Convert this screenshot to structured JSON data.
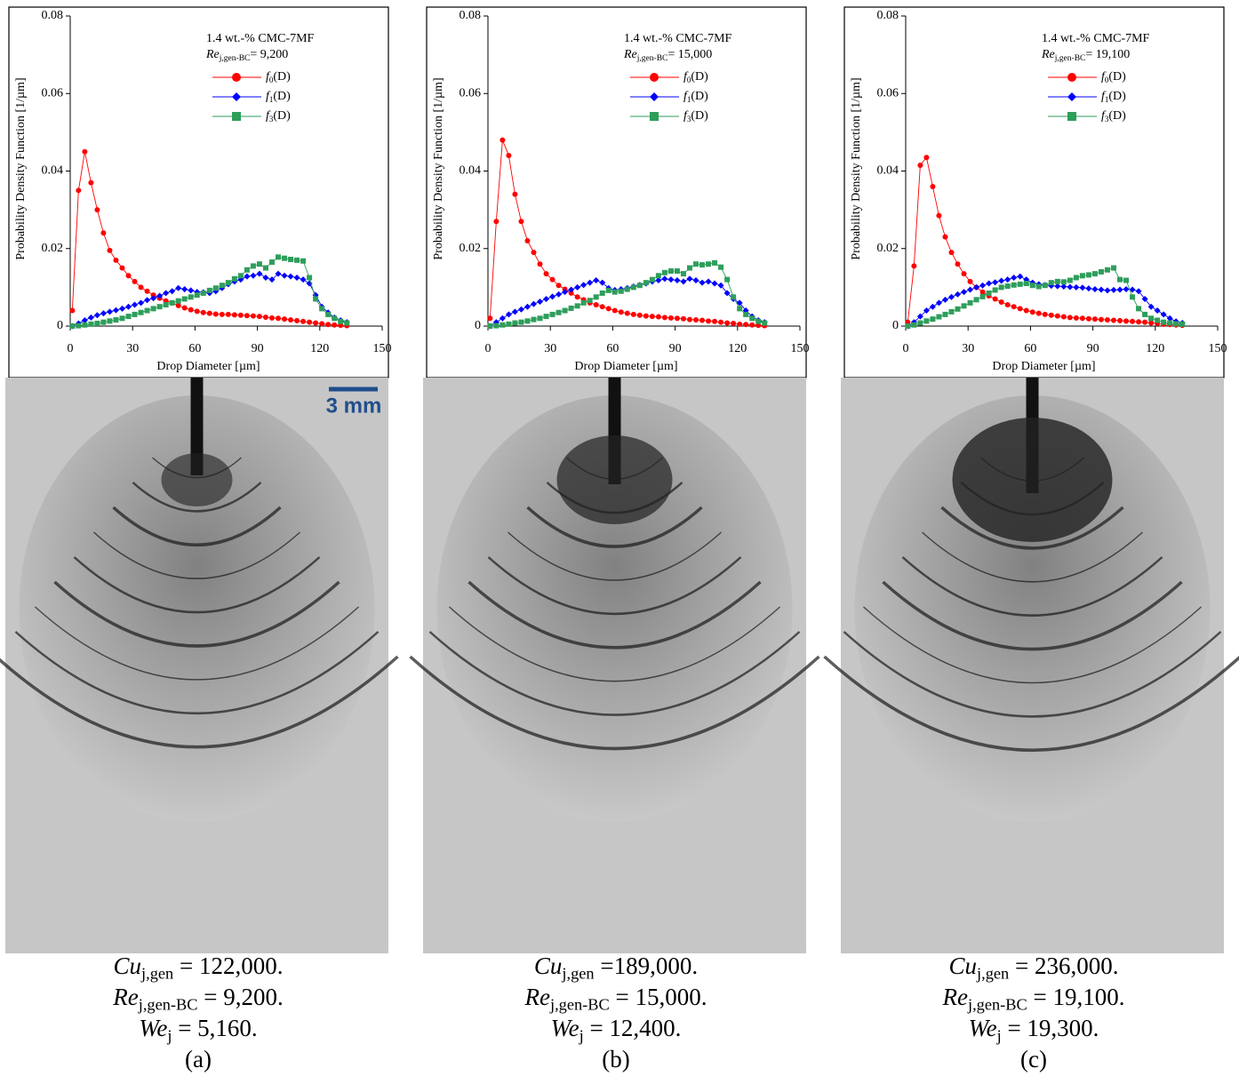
{
  "chart_data": [
    {
      "type": "line",
      "x_label": "Drop Diameter [µm]",
      "y_label": "Probability Density Function [1/µm]",
      "annotation": "1.4 wt.-% CMC-7MF",
      "annotation_re": {
        "symbol": "Re",
        "subscript": "j,gen-BC",
        "text": "= 9,200"
      },
      "xlim": [
        0,
        150
      ],
      "xticks": [
        0,
        30,
        60,
        90,
        120,
        150
      ],
      "ylim": [
        0,
        0.08
      ],
      "yticks": [
        0,
        0.02,
        0.04,
        0.06,
        0.08
      ],
      "x": [
        1,
        4,
        7,
        10,
        13,
        16,
        19,
        22,
        25,
        28,
        31,
        34,
        37,
        40,
        43,
        46,
        49,
        52,
        55,
        58,
        61,
        64,
        67,
        70,
        73,
        76,
        79,
        82,
        85,
        88,
        91,
        94,
        97,
        100,
        103,
        106,
        109,
        112,
        115,
        118,
        121,
        124,
        127,
        130,
        133
      ],
      "series": [
        {
          "name": "f0(D)",
          "color": "#ff0000",
          "marker": "circle",
          "values": [
            0.004,
            0.035,
            0.045,
            0.037,
            0.03,
            0.024,
            0.0195,
            0.017,
            0.015,
            0.013,
            0.0115,
            0.01,
            0.009,
            0.008,
            0.0072,
            0.0065,
            0.006,
            0.0053,
            0.0047,
            0.0042,
            0.0038,
            0.0035,
            0.0033,
            0.0031,
            0.003,
            0.003,
            0.0029,
            0.0028,
            0.0027,
            0.0026,
            0.0025,
            0.0023,
            0.0021,
            0.002,
            0.0018,
            0.0016,
            0.0014,
            0.0012,
            0.001,
            0.0008,
            0.0006,
            0.0004,
            0.0003,
            0.0002,
            0.0001
          ]
        },
        {
          "name": "f1(D)",
          "color": "#0000ff",
          "marker": "diamond",
          "values": [
            0,
            0.0007,
            0.0015,
            0.0022,
            0.0028,
            0.0033,
            0.0037,
            0.0041,
            0.0045,
            0.005,
            0.0055,
            0.006,
            0.0067,
            0.0072,
            0.0078,
            0.0085,
            0.009,
            0.0098,
            0.0095,
            0.0092,
            0.0088,
            0.0087,
            0.0085,
            0.009,
            0.0098,
            0.0108,
            0.0115,
            0.012,
            0.0128,
            0.013,
            0.0135,
            0.0125,
            0.012,
            0.0135,
            0.013,
            0.0128,
            0.0125,
            0.012,
            0.011,
            0.008,
            0.005,
            0.0035,
            0.0022,
            0.0015,
            0.001
          ]
        },
        {
          "name": "f3(D)",
          "color": "#2e9e5b",
          "marker": "square",
          "values": [
            0,
            0.0001,
            0.0003,
            0.0005,
            0.0007,
            0.001,
            0.0013,
            0.0016,
            0.002,
            0.0025,
            0.003,
            0.0035,
            0.004,
            0.0045,
            0.005,
            0.0055,
            0.006,
            0.0065,
            0.007,
            0.0075,
            0.008,
            0.0085,
            0.0092,
            0.0098,
            0.0105,
            0.0112,
            0.0122,
            0.013,
            0.0145,
            0.0155,
            0.016,
            0.015,
            0.0165,
            0.0178,
            0.0175,
            0.0172,
            0.017,
            0.0168,
            0.0125,
            0.007,
            0.0045,
            0.003,
            0.002,
            0.0012,
            0.0008
          ]
        }
      ]
    },
    {
      "type": "line",
      "x_label": "Drop Diameter [µm]",
      "y_label": "Probability Density Function [1/µm]",
      "annotation": "1.4 wt.-% CMC-7MF",
      "annotation_re": {
        "symbol": "Re",
        "subscript": "j,gen-BC",
        "text": "= 15,000"
      },
      "xlim": [
        0,
        150
      ],
      "xticks": [
        0,
        30,
        60,
        90,
        120,
        150
      ],
      "ylim": [
        0,
        0.08
      ],
      "yticks": [
        0,
        0.02,
        0.04,
        0.06,
        0.08
      ],
      "x": [
        1,
        4,
        7,
        10,
        13,
        16,
        19,
        22,
        25,
        28,
        31,
        34,
        37,
        40,
        43,
        46,
        49,
        52,
        55,
        58,
        61,
        64,
        67,
        70,
        73,
        76,
        79,
        82,
        85,
        88,
        91,
        94,
        97,
        100,
        103,
        106,
        109,
        112,
        115,
        118,
        121,
        124,
        127,
        130,
        133
      ],
      "series": [
        {
          "name": "f0(D)",
          "color": "#ff0000",
          "marker": "circle",
          "values": [
            0.002,
            0.027,
            0.048,
            0.044,
            0.034,
            0.027,
            0.022,
            0.019,
            0.016,
            0.0135,
            0.012,
            0.0105,
            0.0095,
            0.0085,
            0.0075,
            0.0068,
            0.006,
            0.0055,
            0.005,
            0.0045,
            0.004,
            0.0036,
            0.0033,
            0.003,
            0.0028,
            0.0026,
            0.0025,
            0.0024,
            0.0022,
            0.0021,
            0.002,
            0.0019,
            0.0017,
            0.0016,
            0.0015,
            0.0013,
            0.0012,
            0.001,
            0.0008,
            0.0007,
            0.0005,
            0.0004,
            0.0003,
            0.0002,
            0.0001
          ]
        },
        {
          "name": "f1(D)",
          "color": "#0000ff",
          "marker": "diamond",
          "values": [
            0,
            0.001,
            0.002,
            0.003,
            0.0037,
            0.0043,
            0.005,
            0.0057,
            0.0063,
            0.007,
            0.0076,
            0.0082,
            0.0088,
            0.0094,
            0.01,
            0.0106,
            0.0112,
            0.0118,
            0.0112,
            0.0098,
            0.0093,
            0.0095,
            0.0098,
            0.0102,
            0.0106,
            0.011,
            0.0115,
            0.0118,
            0.0122,
            0.012,
            0.0118,
            0.0115,
            0.0122,
            0.0118,
            0.0112,
            0.0115,
            0.011,
            0.0105,
            0.0085,
            0.007,
            0.006,
            0.004,
            0.0025,
            0.0015,
            0.001
          ]
        },
        {
          "name": "f3(D)",
          "color": "#2e9e5b",
          "marker": "square",
          "values": [
            0,
            0.0001,
            0.0003,
            0.0005,
            0.0008,
            0.001,
            0.0013,
            0.0017,
            0.002,
            0.0025,
            0.003,
            0.0035,
            0.004,
            0.0046,
            0.0052,
            0.006,
            0.0066,
            0.0075,
            0.0085,
            0.0092,
            0.0088,
            0.009,
            0.0095,
            0.01,
            0.0105,
            0.0112,
            0.012,
            0.013,
            0.0138,
            0.0142,
            0.0142,
            0.0135,
            0.015,
            0.016,
            0.0158,
            0.016,
            0.0163,
            0.0152,
            0.012,
            0.0075,
            0.0045,
            0.003,
            0.002,
            0.0012,
            0.0008
          ]
        }
      ]
    },
    {
      "type": "line",
      "x_label": "Drop Diameter [µm]",
      "y_label": "Probability Density Function [1/µm]",
      "annotation": "1.4 wt.-% CMC-7MF",
      "annotation_re": {
        "symbol": "Re",
        "subscript": "j,gen-BC",
        "text": "= 19,100"
      },
      "xlim": [
        0,
        150
      ],
      "xticks": [
        0,
        30,
        60,
        90,
        120,
        150
      ],
      "ylim": [
        0,
        0.08
      ],
      "yticks": [
        0,
        0.02,
        0.04,
        0.06,
        0.08
      ],
      "x": [
        1,
        4,
        7,
        10,
        13,
        16,
        19,
        22,
        25,
        28,
        31,
        34,
        37,
        40,
        43,
        46,
        49,
        52,
        55,
        58,
        61,
        64,
        67,
        70,
        73,
        76,
        79,
        82,
        85,
        88,
        91,
        94,
        97,
        100,
        103,
        106,
        109,
        112,
        115,
        118,
        121,
        124,
        127,
        130,
        133
      ],
      "series": [
        {
          "name": "f0(D)",
          "color": "#ff0000",
          "marker": "circle",
          "values": [
            0.001,
            0.0155,
            0.0415,
            0.0435,
            0.036,
            0.0285,
            0.023,
            0.019,
            0.016,
            0.0135,
            0.0115,
            0.01,
            0.0088,
            0.0078,
            0.007,
            0.0062,
            0.0055,
            0.005,
            0.0045,
            0.004,
            0.0036,
            0.0033,
            0.003,
            0.0028,
            0.0026,
            0.0024,
            0.0022,
            0.0021,
            0.002,
            0.0019,
            0.0018,
            0.0017,
            0.0016,
            0.0015,
            0.0014,
            0.0013,
            0.0012,
            0.0011,
            0.001,
            0.0008,
            0.0007,
            0.0005,
            0.0004,
            0.0003,
            0.0002
          ]
        },
        {
          "name": "f1(D)",
          "color": "#0000ff",
          "marker": "diamond",
          "values": [
            0,
            0.001,
            0.0025,
            0.004,
            0.005,
            0.006,
            0.0068,
            0.0075,
            0.0082,
            0.0088,
            0.0094,
            0.01,
            0.0105,
            0.011,
            0.0113,
            0.0117,
            0.012,
            0.0125,
            0.0128,
            0.012,
            0.0112,
            0.0108,
            0.0106,
            0.0104,
            0.0103,
            0.0102,
            0.0101,
            0.01,
            0.0099,
            0.0097,
            0.0095,
            0.0094,
            0.0092,
            0.0093,
            0.0094,
            0.0095,
            0.0094,
            0.009,
            0.007,
            0.005,
            0.004,
            0.003,
            0.002,
            0.0012,
            0.0008
          ]
        },
        {
          "name": "f3(D)",
          "color": "#2e9e5b",
          "marker": "square",
          "values": [
            0,
            0.0003,
            0.0008,
            0.0013,
            0.0018,
            0.0024,
            0.003,
            0.0037,
            0.0044,
            0.0052,
            0.006,
            0.0068,
            0.0076,
            0.0085,
            0.0093,
            0.01,
            0.0103,
            0.0106,
            0.0108,
            0.011,
            0.0105,
            0.0102,
            0.0105,
            0.0112,
            0.0115,
            0.0114,
            0.0118,
            0.0125,
            0.013,
            0.0132,
            0.0135,
            0.014,
            0.0145,
            0.015,
            0.012,
            0.0118,
            0.0075,
            0.0045,
            0.003,
            0.002,
            0.0015,
            0.001,
            0.0008,
            0.0006,
            0.0005
          ]
        }
      ]
    }
  ],
  "scale_bar": "3 mm",
  "captions": [
    {
      "lines": [
        {
          "symbol": "Cu",
          "subscript": "j,gen",
          "text": " = 122,000."
        },
        {
          "symbol": "Re",
          "subscript": "j,gen-BC",
          "text": " = 9,200."
        },
        {
          "symbol": "We",
          "subscript": "j",
          "text": " = 5,160."
        }
      ],
      "label": "(a)"
    },
    {
      "lines": [
        {
          "symbol": "Cu",
          "subscript": "j,gen",
          "text": " =189,000."
        },
        {
          "symbol": "Re",
          "subscript": "j,gen-BC",
          "text": " = 15,000."
        },
        {
          "symbol": "We",
          "subscript": "j",
          "text": " = 12,400."
        }
      ],
      "label": "(b)"
    },
    {
      "lines": [
        {
          "symbol": "Cu",
          "subscript": "j,gen",
          "text": " = 236,000."
        },
        {
          "symbol": "Re",
          "subscript": "j,gen-BC",
          "text": " = 19,100."
        },
        {
          "symbol": "We",
          "subscript": "j",
          "text": " = 19,300."
        }
      ],
      "label": "(c)"
    }
  ]
}
